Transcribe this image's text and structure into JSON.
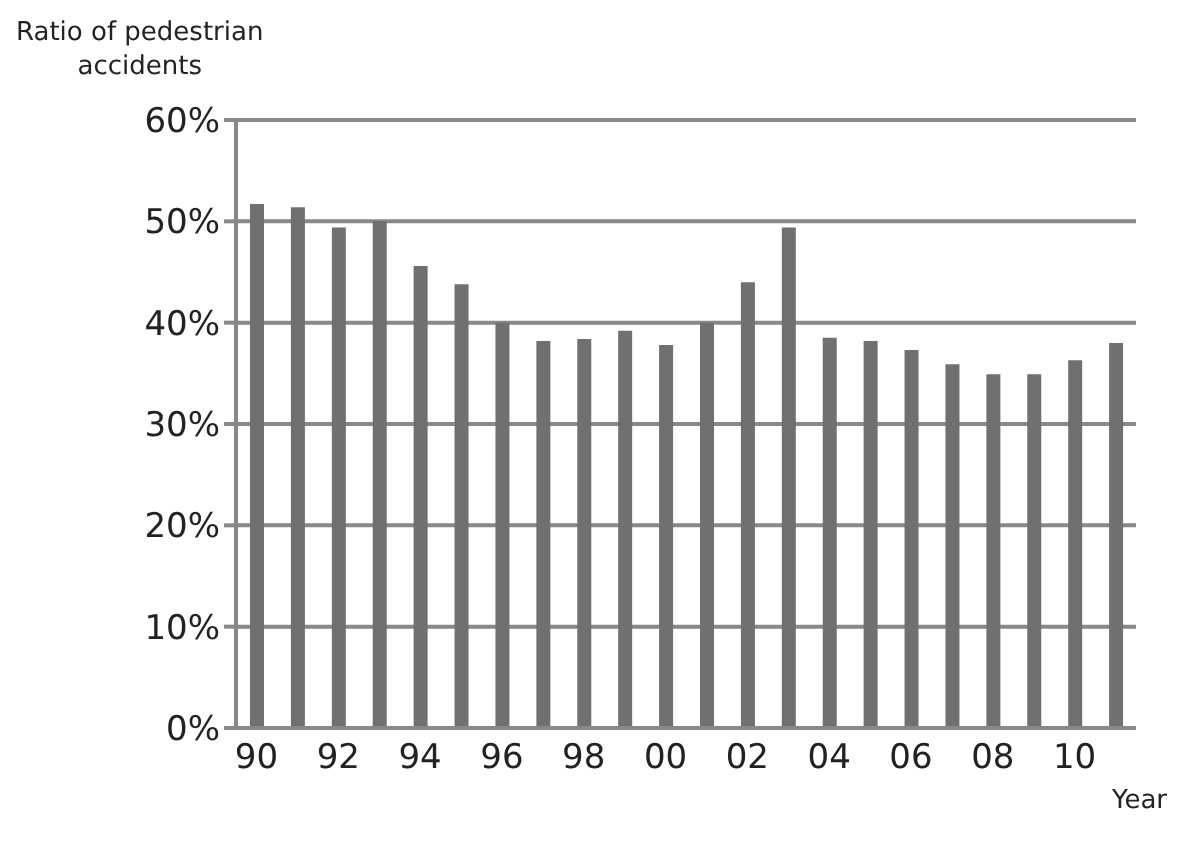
{
  "chart_data": {
    "type": "bar",
    "ylabel": "Ratio of pedestrian accidents",
    "xlabel": "Year",
    "categories": [
      "90",
      null,
      "92",
      null,
      "94",
      null,
      "96",
      null,
      "98",
      null,
      "00",
      null,
      "02",
      null,
      "04",
      null,
      "06",
      null,
      "08",
      null,
      "10",
      null
    ],
    "values": [
      51.7,
      51.4,
      49.4,
      50,
      45.6,
      43.8,
      40,
      38.2,
      38.4,
      39.2,
      37.8,
      40,
      44,
      49.4,
      38.5,
      38.2,
      37.3,
      35.9,
      34.9,
      34.9,
      36.3,
      38
    ],
    "color": "#707070",
    "ylim": [
      0,
      60
    ],
    "yticks": [
      {
        "value": 0,
        "label": "0%"
      },
      {
        "value": 10,
        "label": "10%"
      },
      {
        "value": 20,
        "label": "20%"
      },
      {
        "value": 30,
        "label": "30%"
      },
      {
        "value": 40,
        "label": "40%"
      },
      {
        "value": 50,
        "label": "50%"
      },
      {
        "value": 60,
        "label": "60%"
      }
    ],
    "grid": "y"
  }
}
